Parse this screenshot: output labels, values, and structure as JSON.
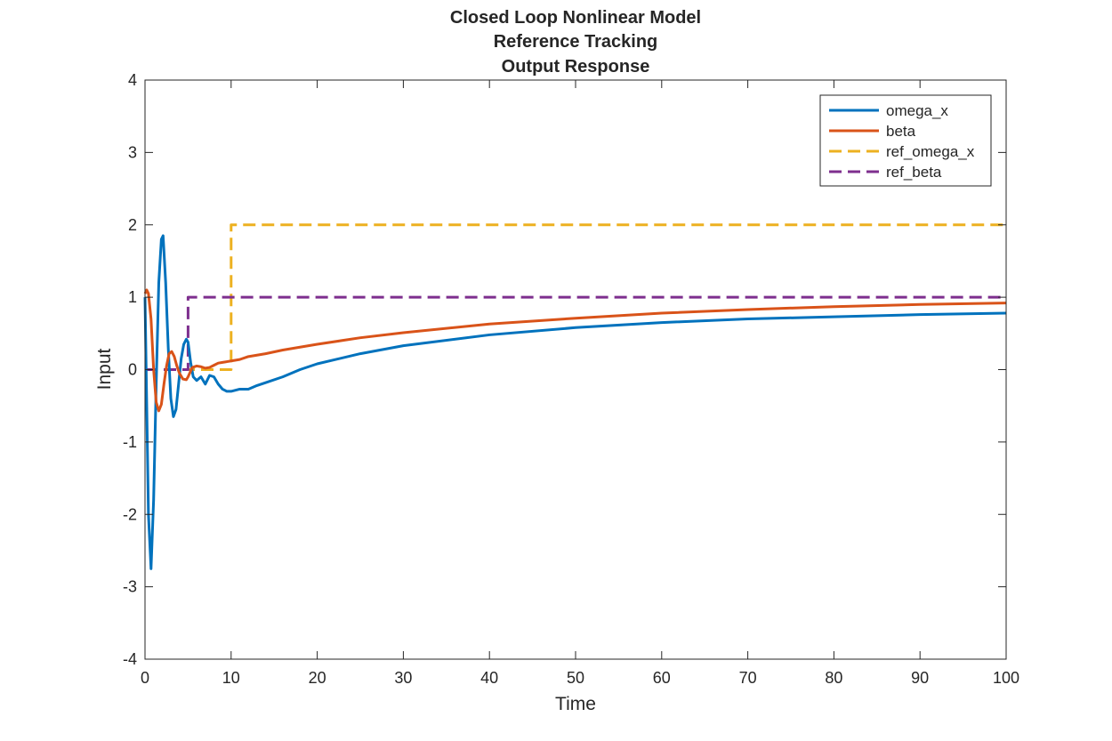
{
  "chart_data": {
    "type": "line",
    "title": [
      "Closed Loop Nonlinear Model",
      "Reference Tracking",
      "Output Response"
    ],
    "xlabel": "Time",
    "ylabel": "Input",
    "xlim": [
      0,
      100
    ],
    "ylim": [
      -4,
      4
    ],
    "xticks": [
      "0",
      "10",
      "20",
      "30",
      "40",
      "50",
      "60",
      "70",
      "80",
      "90",
      "100"
    ],
    "yticks": [
      "-4",
      "-3",
      "-2",
      "-1",
      "0",
      "1",
      "2",
      "3",
      "4"
    ],
    "grid": false,
    "legend_location": "top-right",
    "series": [
      {
        "name": "omega_x",
        "color": "#0072BD",
        "style": "solid",
        "x": [
          0,
          0.2,
          0.4,
          0.7,
          1.0,
          1.3,
          1.6,
          1.9,
          2.1,
          2.4,
          2.7,
          3.0,
          3.3,
          3.6,
          3.9,
          4.2,
          4.5,
          4.8,
          5.0,
          5.3,
          5.6,
          6.0,
          6.5,
          7.0,
          7.5,
          8.0,
          8.5,
          9.0,
          9.5,
          10,
          11,
          12,
          13,
          14,
          16,
          18,
          20,
          25,
          30,
          40,
          50,
          60,
          70,
          80,
          90,
          100
        ],
        "y": [
          1.0,
          -0.5,
          -2.0,
          -2.75,
          -1.8,
          -0.2,
          1.2,
          1.8,
          1.85,
          1.2,
          0.3,
          -0.4,
          -0.65,
          -0.55,
          -0.2,
          0.15,
          0.35,
          0.42,
          0.38,
          0.1,
          -0.1,
          -0.15,
          -0.1,
          -0.2,
          -0.08,
          -0.1,
          -0.2,
          -0.27,
          -0.3,
          -0.3,
          -0.27,
          -0.27,
          -0.22,
          -0.18,
          -0.1,
          0.0,
          0.08,
          0.22,
          0.33,
          0.48,
          0.58,
          0.65,
          0.7,
          0.73,
          0.76,
          0.78
        ]
      },
      {
        "name": "beta",
        "color": "#D95319",
        "style": "solid",
        "x": [
          0,
          0.2,
          0.4,
          0.7,
          1.0,
          1.3,
          1.6,
          1.9,
          2.2,
          2.5,
          2.8,
          3.1,
          3.4,
          3.7,
          4.0,
          4.4,
          4.8,
          5.0,
          5.5,
          6.0,
          6.5,
          7.0,
          7.5,
          8.0,
          8.5,
          9.0,
          9.5,
          10,
          11,
          12,
          14,
          16,
          20,
          25,
          30,
          40,
          50,
          60,
          70,
          80,
          90,
          100
        ],
        "y": [
          1.05,
          1.1,
          1.05,
          0.7,
          0.0,
          -0.45,
          -0.57,
          -0.48,
          -0.2,
          0.05,
          0.22,
          0.25,
          0.18,
          0.05,
          -0.05,
          -0.13,
          -0.14,
          -0.1,
          0.03,
          0.05,
          0.04,
          0.02,
          0.03,
          0.06,
          0.09,
          0.1,
          0.11,
          0.12,
          0.14,
          0.18,
          0.22,
          0.27,
          0.35,
          0.44,
          0.51,
          0.63,
          0.71,
          0.78,
          0.83,
          0.87,
          0.9,
          0.92
        ]
      },
      {
        "name": "ref_omega_x",
        "color": "#EDB120",
        "style": "dashed",
        "x": [
          0,
          10,
          10,
          100
        ],
        "y": [
          0,
          0,
          2,
          2
        ]
      },
      {
        "name": "ref_beta",
        "color": "#7E2F8E",
        "style": "dashed",
        "x": [
          0,
          5,
          5,
          100
        ],
        "y": [
          0,
          0,
          1,
          1
        ]
      }
    ]
  }
}
